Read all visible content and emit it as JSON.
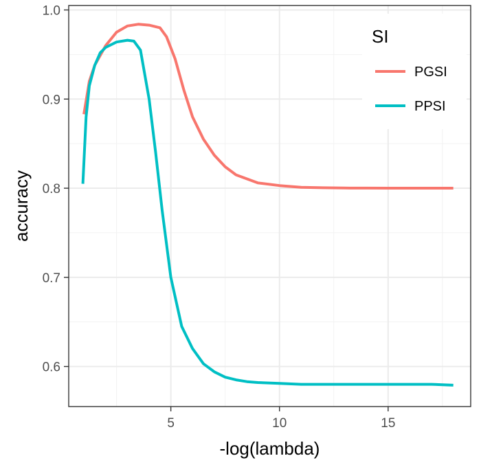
{
  "chart_data": {
    "type": "line",
    "title": "",
    "xlabel": "-log(lambda)",
    "ylabel": "accuracy",
    "xlim": [
      0.3,
      18.8
    ],
    "ylim": [
      0.555,
      1.005
    ],
    "x_ticks": [
      5,
      10,
      15
    ],
    "x_tick_labels": [
      "5",
      "10",
      "15"
    ],
    "y_ticks": [
      0.6,
      0.7,
      0.8,
      0.9,
      1.0
    ],
    "y_tick_labels": [
      "0.6",
      "0.7",
      "0.8",
      "0.9",
      "1.0"
    ],
    "grid": true,
    "legend": {
      "title": "SI",
      "placement": "top-right"
    },
    "series": [
      {
        "name": "PGSI",
        "color": "#F8766D",
        "x": [
          1.0,
          1.25,
          1.5,
          2.0,
          2.5,
          3.0,
          3.5,
          4.0,
          4.5,
          4.8,
          5.2,
          5.6,
          6.0,
          6.5,
          7.0,
          7.5,
          8.0,
          9.0,
          10.0,
          11.0,
          12.0,
          13.0,
          14.0,
          15.0,
          16.0,
          17.0,
          18.0
        ],
        "y": [
          0.883,
          0.92,
          0.938,
          0.96,
          0.975,
          0.982,
          0.984,
          0.983,
          0.98,
          0.97,
          0.945,
          0.91,
          0.88,
          0.855,
          0.837,
          0.824,
          0.815,
          0.806,
          0.803,
          0.801,
          0.8005,
          0.8002,
          0.8001,
          0.8,
          0.8,
          0.8,
          0.8
        ]
      },
      {
        "name": "PPSI",
        "color": "#00BFC4",
        "x": [
          0.95,
          1.1,
          1.25,
          1.5,
          1.75,
          2.0,
          2.5,
          3.0,
          3.3,
          3.6,
          4.0,
          4.3,
          4.6,
          5.0,
          5.5,
          6.0,
          6.5,
          7.0,
          7.5,
          8.0,
          8.5,
          9.0,
          10.0,
          11.0,
          12.0,
          13.0,
          14.0,
          15.0,
          16.0,
          17.0,
          18.0
        ],
        "y": [
          0.805,
          0.88,
          0.915,
          0.938,
          0.952,
          0.958,
          0.964,
          0.966,
          0.965,
          0.955,
          0.9,
          0.84,
          0.775,
          0.7,
          0.645,
          0.62,
          0.603,
          0.594,
          0.588,
          0.585,
          0.583,
          0.582,
          0.581,
          0.58,
          0.58,
          0.58,
          0.58,
          0.58,
          0.58,
          0.58,
          0.579
        ]
      }
    ]
  }
}
